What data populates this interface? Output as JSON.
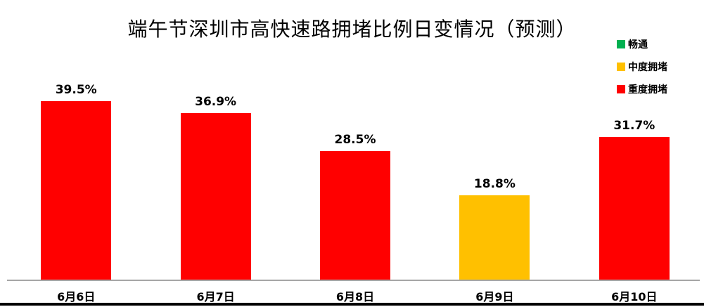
{
  "chart": {
    "title": "端午节深圳市高快速路拥堵比例日变情况（预测）"
  },
  "legend": {
    "position": "top-right",
    "items": [
      {
        "label": "畅通",
        "color": "#00B050"
      },
      {
        "label": "中度拥堵",
        "color": "#FFC000"
      },
      {
        "label": "重度拥堵",
        "color": "#FF0000"
      }
    ]
  },
  "colors": {
    "severe_congestion": "#FF0000",
    "moderate_congestion": "#FFC000",
    "free_flow": "#00B050",
    "axis_line": "#a6a6a6",
    "bottom_rule": "#000000"
  },
  "chart_data": {
    "type": "bar",
    "title": "端午节深圳市高快速路拥堵比例日变情况（预测）",
    "categories": [
      "6月6日",
      "6月7日",
      "6月8日",
      "6月9日",
      "6月10日"
    ],
    "values": [
      39.5,
      36.9,
      28.5,
      18.8,
      31.7
    ],
    "data_labels": [
      "39.5%",
      "36.9%",
      "28.5%",
      "18.8%",
      "31.7%"
    ],
    "bar_colors": [
      "#FF0000",
      "#FF0000",
      "#FF0000",
      "#FFC000",
      "#FF0000"
    ],
    "bar_series": [
      "重度拥堵",
      "重度拥堵",
      "重度拥堵",
      "中度拥堵",
      "重度拥堵"
    ],
    "legend_entries": [
      "畅通",
      "中度拥堵",
      "重度拥堵"
    ],
    "xlabel": "",
    "ylabel": "",
    "ylim": [
      0,
      45
    ],
    "grid": false,
    "y_axis_visible": false,
    "legend_position": "top-right"
  }
}
